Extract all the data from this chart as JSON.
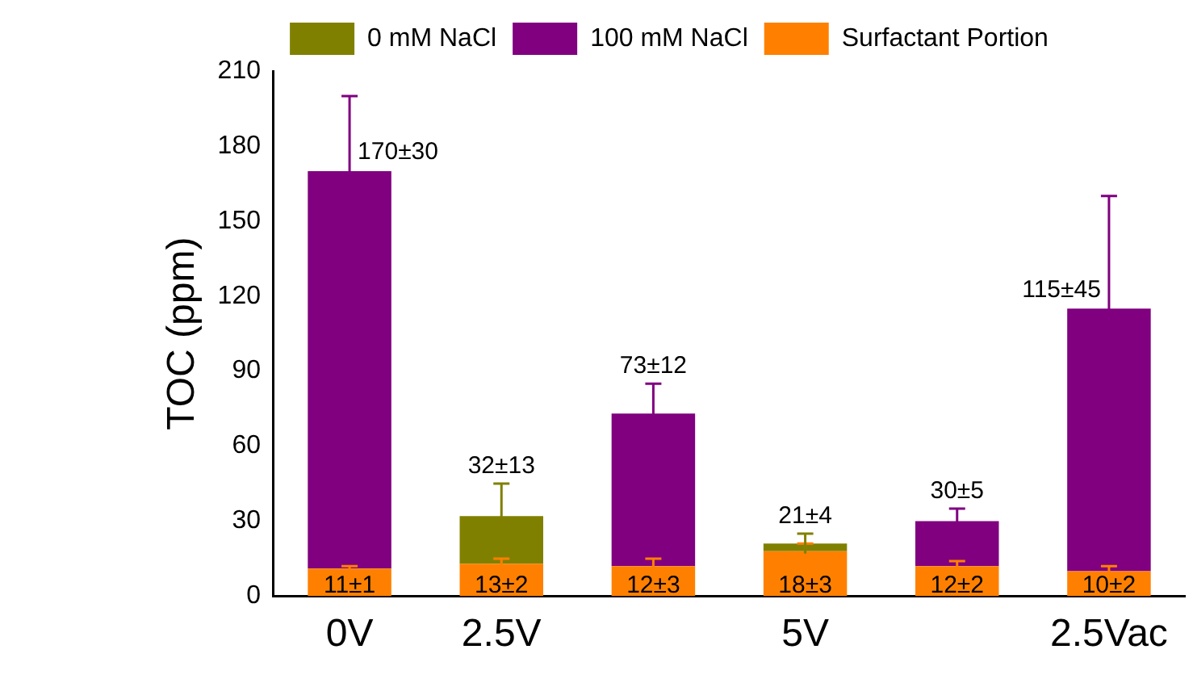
{
  "chart_data": {
    "type": "bar",
    "ylabel": "TOC (ppm)",
    "categories": [
      "0V",
      "2.5V",
      null,
      "5V",
      null,
      "2.5Vac"
    ],
    "stacked": true,
    "legend": "top",
    "ylim": [
      0,
      210
    ],
    "yticks": [
      0,
      30,
      60,
      90,
      120,
      150,
      180,
      210
    ],
    "totals": [
      "170±30",
      "32±13",
      "73±12",
      "21±4",
      "30±5",
      "115±45"
    ],
    "series": [
      {
        "name": "Surfactant Portion",
        "color": "#ff8000",
        "values": [
          11,
          13,
          12,
          18,
          12,
          10
        ],
        "errors": [
          1,
          2,
          3,
          3,
          2,
          2
        ],
        "value_labels": [
          "11±1",
          "13±2",
          "12±3",
          "18±3",
          "12±2",
          "10±2"
        ]
      },
      {
        "name": "0 mM NaCl",
        "color": "#808000",
        "values": [
          null,
          19,
          null,
          3,
          null,
          null
        ],
        "errors": [
          null,
          13,
          null,
          4,
          null,
          null
        ]
      },
      {
        "name": "100 mM NaCl",
        "color": "#800080",
        "values": [
          159,
          null,
          61,
          null,
          18,
          105
        ],
        "errors": [
          30,
          null,
          12,
          null,
          5,
          45
        ]
      }
    ]
  }
}
